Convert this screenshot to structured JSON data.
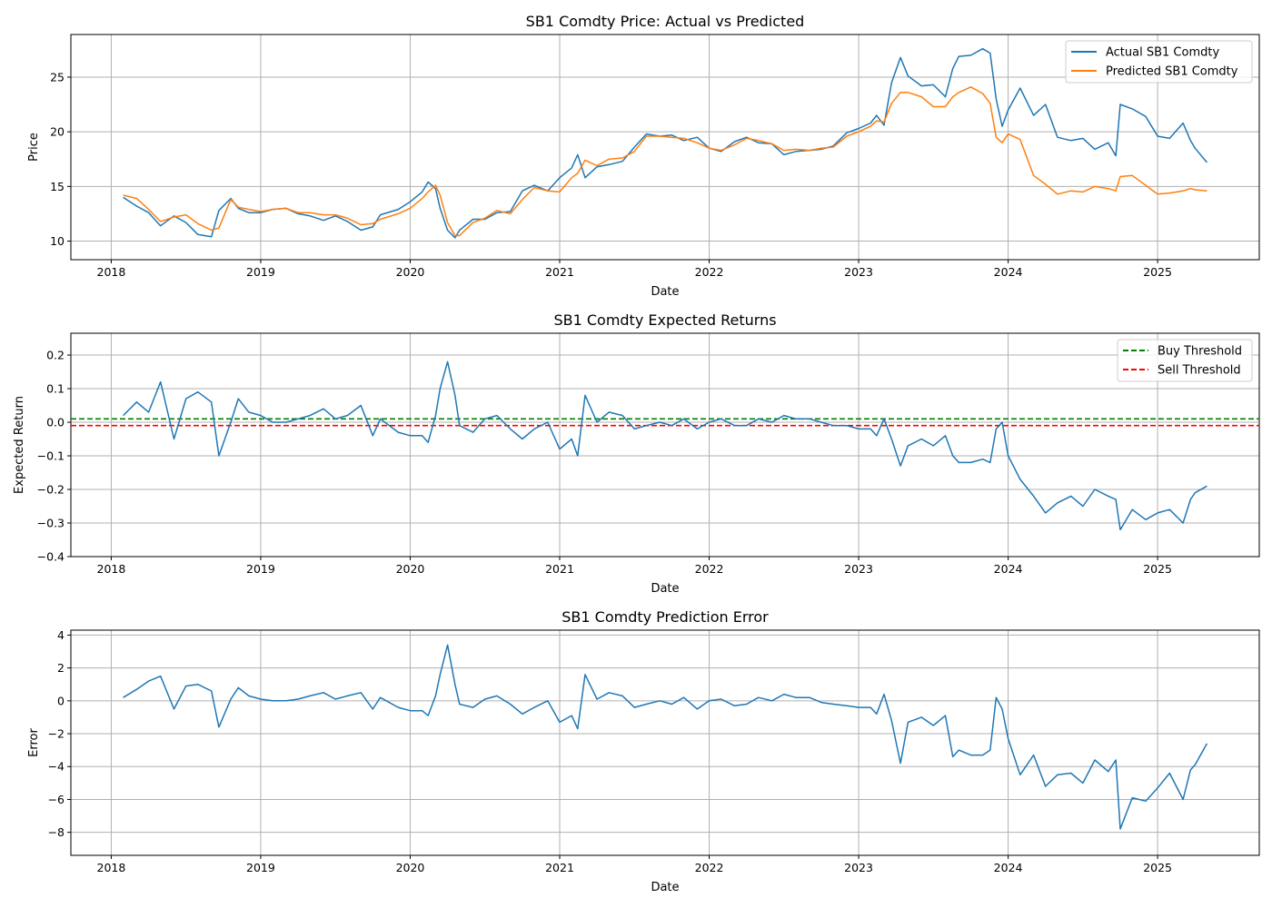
{
  "colors": {
    "actual": "#1f77b4",
    "predicted": "#ff7f0e",
    "buy": "#008000",
    "sell": "#ff0000",
    "grid": "#b0b0b0"
  },
  "chart_data": [
    {
      "type": "line",
      "title": "SB1 Comdty Price: Actual vs Predicted",
      "xlabel": "Date",
      "ylabel": "Price",
      "xlim": [
        2017.73,
        2025.68
      ],
      "ylim": [
        8.3,
        28.9
      ],
      "xticks": [
        2018,
        2019,
        2020,
        2021,
        2022,
        2023,
        2024,
        2025
      ],
      "xtick_labels": [
        "2018",
        "2019",
        "2020",
        "2021",
        "2022",
        "2023",
        "2024",
        "2025"
      ],
      "yticks": [
        10,
        15,
        20,
        25
      ],
      "ytick_labels": [
        "10",
        "15",
        "20",
        "25"
      ],
      "grid": true,
      "legend": "top-right",
      "series": [
        {
          "name": "Actual SB1 Comdty",
          "color": "#1f77b4",
          "x": [
            2018.08,
            2018.17,
            2018.25,
            2018.33,
            2018.42,
            2018.5,
            2018.58,
            2018.67,
            2018.72,
            2018.8,
            2018.85,
            2018.92,
            2019.0,
            2019.08,
            2019.17,
            2019.25,
            2019.33,
            2019.42,
            2019.5,
            2019.58,
            2019.67,
            2019.75,
            2019.8,
            2019.92,
            2020.0,
            2020.08,
            2020.12,
            2020.17,
            2020.2,
            2020.25,
            2020.3,
            2020.33,
            2020.42,
            2020.5,
            2020.58,
            2020.67,
            2020.75,
            2020.83,
            2020.92,
            2021.0,
            2021.08,
            2021.12,
            2021.17,
            2021.25,
            2021.33,
            2021.42,
            2021.5,
            2021.58,
            2021.67,
            2021.75,
            2021.83,
            2021.92,
            2022.0,
            2022.08,
            2022.17,
            2022.25,
            2022.33,
            2022.42,
            2022.5,
            2022.58,
            2022.67,
            2022.75,
            2022.83,
            2022.92,
            2023.0,
            2023.08,
            2023.12,
            2023.17,
            2023.22,
            2023.28,
            2023.33,
            2023.42,
            2023.5,
            2023.58,
            2023.63,
            2023.67,
            2023.75,
            2023.83,
            2023.88,
            2023.92,
            2023.96,
            2024.0,
            2024.08,
            2024.17,
            2024.25,
            2024.33,
            2024.42,
            2024.5,
            2024.58,
            2024.67,
            2024.72,
            2024.75,
            2024.83,
            2024.92,
            2025.0,
            2025.08,
            2025.17,
            2025.22,
            2025.25,
            2025.33
          ],
          "values": [
            14.0,
            13.2,
            12.6,
            11.4,
            12.3,
            11.7,
            10.6,
            10.4,
            12.8,
            13.9,
            13.0,
            12.6,
            12.6,
            12.9,
            13.0,
            12.5,
            12.3,
            11.9,
            12.3,
            11.8,
            11.0,
            11.3,
            12.4,
            12.9,
            13.6,
            14.5,
            15.4,
            14.8,
            13.0,
            11.0,
            10.3,
            11.0,
            12.0,
            12.0,
            12.6,
            12.7,
            14.6,
            15.1,
            14.6,
            15.8,
            16.7,
            17.9,
            15.8,
            16.8,
            17.0,
            17.3,
            18.6,
            19.8,
            19.6,
            19.7,
            19.2,
            19.5,
            18.5,
            18.2,
            19.1,
            19.5,
            19.0,
            18.9,
            17.9,
            18.2,
            18.3,
            18.4,
            18.7,
            19.9,
            20.3,
            20.8,
            21.5,
            20.6,
            24.5,
            26.8,
            25.1,
            24.2,
            24.3,
            23.2,
            25.8,
            26.9,
            27.0,
            27.6,
            27.2,
            23.0,
            20.5,
            22.0,
            24.0,
            21.5,
            22.5,
            19.5,
            19.2,
            19.4,
            18.4,
            19.0,
            17.8,
            22.5,
            22.1,
            21.4,
            19.6,
            19.4,
            20.8,
            19.2,
            18.5,
            17.2
          ]
        },
        {
          "name": "Predicted SB1 Comdty",
          "color": "#ff7f0e",
          "x": [
            2018.08,
            2018.17,
            2018.25,
            2018.33,
            2018.42,
            2018.5,
            2018.58,
            2018.67,
            2018.72,
            2018.8,
            2018.85,
            2018.92,
            2019.0,
            2019.08,
            2019.17,
            2019.25,
            2019.33,
            2019.42,
            2019.5,
            2019.58,
            2019.67,
            2019.75,
            2019.8,
            2019.92,
            2020.0,
            2020.08,
            2020.12,
            2020.17,
            2020.2,
            2020.25,
            2020.3,
            2020.33,
            2020.42,
            2020.5,
            2020.58,
            2020.67,
            2020.75,
            2020.83,
            2020.92,
            2021.0,
            2021.08,
            2021.12,
            2021.17,
            2021.25,
            2021.33,
            2021.42,
            2021.5,
            2021.58,
            2021.67,
            2021.75,
            2021.83,
            2021.92,
            2022.0,
            2022.08,
            2022.17,
            2022.25,
            2022.33,
            2022.42,
            2022.5,
            2022.58,
            2022.67,
            2022.75,
            2022.83,
            2022.92,
            2023.0,
            2023.08,
            2023.12,
            2023.17,
            2023.22,
            2023.28,
            2023.33,
            2023.42,
            2023.5,
            2023.58,
            2023.63,
            2023.67,
            2023.75,
            2023.83,
            2023.88,
            2023.92,
            2023.96,
            2024.0,
            2024.08,
            2024.17,
            2024.25,
            2024.33,
            2024.42,
            2024.5,
            2024.58,
            2024.67,
            2024.72,
            2024.75,
            2024.83,
            2024.92,
            2025.0,
            2025.08,
            2025.17,
            2025.22,
            2025.25,
            2025.33
          ],
          "values": [
            14.2,
            13.9,
            12.9,
            11.8,
            12.2,
            12.4,
            11.6,
            11.0,
            11.2,
            13.8,
            13.1,
            12.9,
            12.7,
            12.9,
            13.0,
            12.6,
            12.6,
            12.4,
            12.4,
            12.1,
            11.5,
            11.6,
            12.0,
            12.5,
            13.0,
            13.9,
            14.5,
            15.1,
            14.2,
            11.7,
            10.5,
            10.5,
            11.7,
            12.1,
            12.8,
            12.5,
            13.8,
            14.9,
            14.6,
            14.5,
            15.8,
            16.2,
            17.4,
            16.9,
            17.5,
            17.6,
            18.2,
            19.6,
            19.6,
            19.5,
            19.4,
            19.0,
            18.5,
            18.3,
            18.8,
            19.4,
            19.2,
            18.9,
            18.3,
            18.4,
            18.3,
            18.5,
            18.6,
            19.6,
            20.0,
            20.5,
            21.0,
            20.9,
            22.6,
            23.6,
            23.6,
            23.2,
            22.3,
            22.3,
            23.2,
            23.6,
            24.1,
            23.5,
            22.6,
            19.5,
            19.0,
            19.8,
            19.3,
            16.0,
            15.2,
            14.3,
            14.6,
            14.5,
            15.0,
            14.8,
            14.6,
            15.9,
            16.0,
            15.1,
            14.3,
            14.4,
            14.6,
            14.8,
            14.7,
            14.6
          ]
        }
      ]
    },
    {
      "type": "line",
      "title": "SB1 Comdty Expected Returns",
      "xlabel": "Date",
      "ylabel": "Expected Return",
      "xlim": [
        2017.73,
        2025.68
      ],
      "ylim": [
        -0.4,
        0.265
      ],
      "xticks": [
        2018,
        2019,
        2020,
        2021,
        2022,
        2023,
        2024,
        2025
      ],
      "xtick_labels": [
        "2018",
        "2019",
        "2020",
        "2021",
        "2022",
        "2023",
        "2024",
        "2025"
      ],
      "yticks": [
        -0.4,
        -0.3,
        -0.2,
        -0.1,
        0.0,
        0.1,
        0.2
      ],
      "ytick_labels": [
        "−0.4",
        "−0.3",
        "−0.2",
        "−0.1",
        "0.0",
        "0.1",
        "0.2"
      ],
      "grid": true,
      "legend": "top-right",
      "series": [
        {
          "name": "",
          "color": "#1f77b4",
          "x": [
            2018.08,
            2018.17,
            2018.25,
            2018.33,
            2018.42,
            2018.5,
            2018.58,
            2018.67,
            2018.72,
            2018.8,
            2018.85,
            2018.92,
            2019.0,
            2019.08,
            2019.17,
            2019.25,
            2019.33,
            2019.42,
            2019.5,
            2019.58,
            2019.67,
            2019.75,
            2019.8,
            2019.92,
            2020.0,
            2020.08,
            2020.12,
            2020.17,
            2020.2,
            2020.25,
            2020.3,
            2020.33,
            2020.42,
            2020.5,
            2020.58,
            2020.67,
            2020.75,
            2020.83,
            2020.92,
            2021.0,
            2021.08,
            2021.12,
            2021.17,
            2021.25,
            2021.33,
            2021.42,
            2021.5,
            2021.58,
            2021.67,
            2021.75,
            2021.83,
            2021.92,
            2022.0,
            2022.08,
            2022.17,
            2022.25,
            2022.33,
            2022.42,
            2022.5,
            2022.58,
            2022.67,
            2022.75,
            2022.83,
            2022.92,
            2023.0,
            2023.08,
            2023.12,
            2023.17,
            2023.22,
            2023.28,
            2023.33,
            2023.42,
            2023.5,
            2023.58,
            2023.63,
            2023.67,
            2023.75,
            2023.83,
            2023.88,
            2023.92,
            2023.96,
            2024.0,
            2024.08,
            2024.17,
            2024.25,
            2024.33,
            2024.42,
            2024.5,
            2024.58,
            2024.67,
            2024.72,
            2024.75,
            2024.83,
            2024.92,
            2025.0,
            2025.08,
            2025.17,
            2025.22,
            2025.25,
            2025.33
          ],
          "values": [
            0.02,
            0.06,
            0.03,
            0.12,
            -0.05,
            0.07,
            0.09,
            0.06,
            -0.1,
            0.0,
            0.07,
            0.03,
            0.02,
            0.0,
            0.0,
            0.01,
            0.02,
            0.04,
            0.01,
            0.02,
            0.05,
            -0.04,
            0.01,
            -0.03,
            -0.04,
            -0.04,
            -0.06,
            0.02,
            0.1,
            0.18,
            0.08,
            -0.01,
            -0.03,
            0.01,
            0.02,
            -0.02,
            -0.05,
            -0.02,
            0.0,
            -0.08,
            -0.05,
            -0.1,
            0.08,
            0.0,
            0.03,
            0.02,
            -0.02,
            -0.01,
            0.0,
            -0.01,
            0.01,
            -0.02,
            0.0,
            0.01,
            -0.01,
            -0.01,
            0.01,
            0.0,
            0.02,
            0.01,
            0.01,
            0.0,
            -0.01,
            -0.01,
            -0.02,
            -0.02,
            -0.04,
            0.01,
            -0.05,
            -0.13,
            -0.07,
            -0.05,
            -0.07,
            -0.04,
            -0.1,
            -0.12,
            -0.12,
            -0.11,
            -0.12,
            -0.02,
            0.0,
            -0.1,
            -0.17,
            -0.22,
            -0.27,
            -0.24,
            -0.22,
            -0.25,
            -0.2,
            -0.22,
            -0.23,
            -0.32,
            -0.26,
            -0.29,
            -0.27,
            -0.26,
            -0.3,
            -0.23,
            -0.21,
            -0.19
          ]
        }
      ],
      "hlines": [
        {
          "name": "Buy Threshold",
          "y": 0.01,
          "color": "#008000"
        },
        {
          "name": "Sell Threshold",
          "y": -0.01,
          "color": "#ff0000"
        }
      ]
    },
    {
      "type": "line",
      "title": "SB1 Comdty Prediction Error",
      "xlabel": "Date",
      "ylabel": "Error",
      "xlim": [
        2017.73,
        2025.68
      ],
      "ylim": [
        -9.4,
        4.3
      ],
      "xticks": [
        2018,
        2019,
        2020,
        2021,
        2022,
        2023,
        2024,
        2025
      ],
      "xtick_labels": [
        "2018",
        "2019",
        "2020",
        "2021",
        "2022",
        "2023",
        "2024",
        "2025"
      ],
      "yticks": [
        -8,
        -6,
        -4,
        -2,
        0,
        2,
        4
      ],
      "ytick_labels": [
        "−8",
        "−6",
        "−4",
        "−2",
        "0",
        "2",
        "4"
      ],
      "grid": true,
      "series": [
        {
          "name": "",
          "color": "#1f77b4",
          "x": [
            2018.08,
            2018.17,
            2018.25,
            2018.33,
            2018.42,
            2018.5,
            2018.58,
            2018.67,
            2018.72,
            2018.8,
            2018.85,
            2018.92,
            2019.0,
            2019.08,
            2019.17,
            2019.25,
            2019.33,
            2019.42,
            2019.5,
            2019.58,
            2019.67,
            2019.75,
            2019.8,
            2019.92,
            2020.0,
            2020.08,
            2020.12,
            2020.17,
            2020.2,
            2020.25,
            2020.3,
            2020.33,
            2020.42,
            2020.5,
            2020.58,
            2020.67,
            2020.75,
            2020.83,
            2020.92,
            2021.0,
            2021.08,
            2021.12,
            2021.17,
            2021.25,
            2021.33,
            2021.42,
            2021.5,
            2021.58,
            2021.67,
            2021.75,
            2021.83,
            2021.92,
            2022.0,
            2022.08,
            2022.17,
            2022.25,
            2022.33,
            2022.42,
            2022.5,
            2022.58,
            2022.67,
            2022.75,
            2022.83,
            2022.92,
            2023.0,
            2023.08,
            2023.12,
            2023.17,
            2023.22,
            2023.28,
            2023.33,
            2023.42,
            2023.5,
            2023.58,
            2023.63,
            2023.67,
            2023.75,
            2023.83,
            2023.88,
            2023.92,
            2023.96,
            2024.0,
            2024.08,
            2024.17,
            2024.25,
            2024.33,
            2024.42,
            2024.5,
            2024.58,
            2024.67,
            2024.72,
            2024.75,
            2024.83,
            2024.92,
            2025.0,
            2025.08,
            2025.17,
            2025.22,
            2025.25,
            2025.33
          ],
          "values": [
            0.2,
            0.7,
            1.2,
            1.5,
            -0.5,
            0.9,
            1.0,
            0.6,
            -1.6,
            0.1,
            0.8,
            0.3,
            0.1,
            0.0,
            0.0,
            0.1,
            0.3,
            0.5,
            0.1,
            0.3,
            0.5,
            -0.5,
            0.2,
            -0.4,
            -0.6,
            -0.6,
            -0.9,
            0.3,
            1.6,
            3.4,
            1.0,
            -0.2,
            -0.4,
            0.1,
            0.3,
            -0.2,
            -0.8,
            -0.4,
            0.0,
            -1.3,
            -0.9,
            -1.7,
            1.6,
            0.1,
            0.5,
            0.3,
            -0.4,
            -0.2,
            0.0,
            -0.2,
            0.2,
            -0.5,
            0.0,
            0.1,
            -0.3,
            -0.2,
            0.2,
            0.0,
            0.4,
            0.2,
            0.2,
            -0.1,
            -0.2,
            -0.3,
            -0.4,
            -0.4,
            -0.8,
            0.4,
            -1.2,
            -3.8,
            -1.3,
            -1.0,
            -1.5,
            -0.9,
            -3.4,
            -3.0,
            -3.3,
            -3.3,
            -3.0,
            0.2,
            -0.5,
            -2.3,
            -4.5,
            -3.3,
            -5.2,
            -4.5,
            -4.4,
            -5.0,
            -3.6,
            -4.3,
            -3.6,
            -7.8,
            -5.9,
            -6.1,
            -5.3,
            -4.4,
            -6.0,
            -4.2,
            -3.9,
            -2.6
          ]
        }
      ]
    }
  ]
}
